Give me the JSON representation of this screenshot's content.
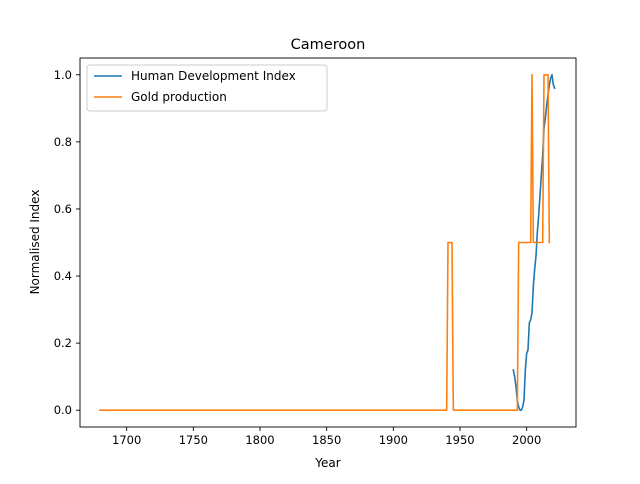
{
  "chart_data": {
    "type": "line",
    "title": "Cameroon",
    "xlabel": "Year",
    "ylabel": "Normalised Index",
    "xlim": [
      1665,
      2037
    ],
    "ylim": [
      -0.05,
      1.05
    ],
    "xticks": [
      1700,
      1750,
      1800,
      1850,
      1900,
      1950,
      2000
    ],
    "yticks": [
      0.0,
      0.2,
      0.4,
      0.6,
      0.8,
      1.0
    ],
    "ytick_labels": [
      "0.0",
      "0.2",
      "0.4",
      "0.6",
      "0.8",
      "1.0"
    ],
    "grid": false,
    "legend": "top-left",
    "series": [
      {
        "name": "Human Development Index",
        "color": "#1f77b4",
        "x": [
          1990,
          1991,
          1992,
          1993,
          1994,
          1995,
          1996,
          1997,
          1998,
          1999,
          2000,
          2001,
          2002,
          2003,
          2004,
          2005,
          2006,
          2007,
          2008,
          2009,
          2010,
          2011,
          2012,
          2013,
          2014,
          2015,
          2016,
          2017,
          2018,
          2019,
          2020,
          2021
        ],
        "y": [
          0.12,
          0.1,
          0.07,
          0.03,
          0.01,
          0.0,
          0.0,
          0.01,
          0.03,
          0.12,
          0.17,
          0.18,
          0.26,
          0.27,
          0.29,
          0.37,
          0.42,
          0.46,
          0.53,
          0.58,
          0.64,
          0.7,
          0.76,
          0.84,
          0.87,
          0.91,
          0.94,
          0.97,
          0.99,
          1.0,
          0.97,
          0.96
        ]
      },
      {
        "name": "Gold production",
        "color": "#ff7f0e",
        "x": [
          1680,
          1940,
          1941,
          1944,
          1945,
          1993,
          1994,
          2003,
          2004,
          2005,
          2006,
          2012,
          2013,
          2016,
          2017
        ],
        "y": [
          0.0,
          0.0,
          0.5,
          0.5,
          0.0,
          0.0,
          0.5,
          0.5,
          1.0,
          0.5,
          0.5,
          0.5,
          1.0,
          1.0,
          0.5
        ]
      }
    ]
  }
}
